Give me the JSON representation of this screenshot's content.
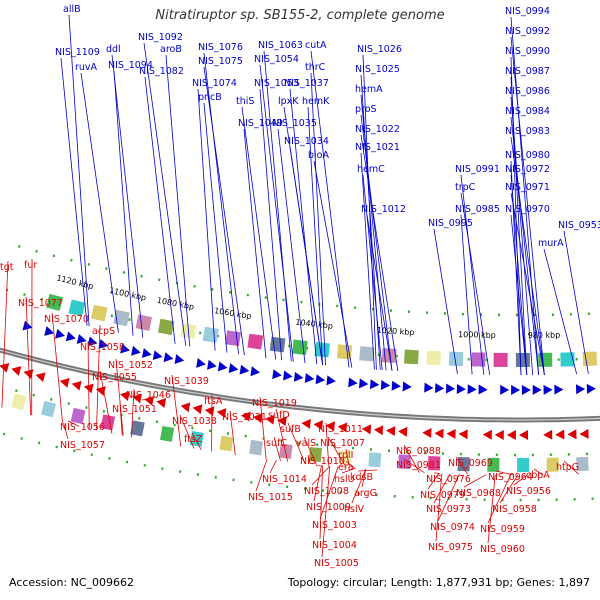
{
  "title": "Nitratiruptor sp. SB155-2, complete genome",
  "footer": {
    "accession": "Accession: NC_009662",
    "summary": "Topology: circular; Length: 1,877,931 bp; Genes: 1,897"
  },
  "colors": {
    "forward": "#0000cc",
    "reverse": "#dd0000",
    "backbone": "#777777",
    "tick": "#33aa33"
  },
  "ticks": [
    "1120 kbp",
    "1100 kbp",
    "1080 kbp",
    "1060 kbp",
    "1040 kbp",
    "1020 kbp",
    "1000 kbp",
    "980 kbp"
  ],
  "forward_labels": [
    "allB",
    "NIS_1109",
    "ddl",
    "ruvA",
    "NIS_1092",
    "NIS_1094",
    "aroB",
    "NIS_1082",
    "NIS_1076",
    "NIS_1075",
    "NIS_1074",
    "pncB",
    "NIS_1063",
    "NIS_1054",
    "cutA",
    "thrC",
    "NIS_1053",
    "NIS_1037",
    "thiS",
    "lpxK",
    "hemK",
    "NIS_1049",
    "NIS_1035",
    "NIS_1034",
    "bioA",
    "NIS_1026",
    "NIS_1025",
    "hemA",
    "proS",
    "NIS_1022",
    "NIS_1021",
    "hemC",
    "NIS_1012",
    "NIS_0994",
    "NIS_0992",
    "NIS_0990",
    "NIS_0987",
    "NIS_0986",
    "NIS_0984",
    "NIS_0983",
    "NIS_0980",
    "NIS_0972",
    "NIS_0991",
    "trpC",
    "NIS_0971",
    "NIS_0985",
    "NIS_0970",
    "NIS_0995",
    "NIS_0953",
    "murA"
  ],
  "reverse_labels": [
    "tgt",
    "fur",
    "NIS_1077",
    "NIS_1070",
    "acpS",
    "NIS_1058",
    "NIS_1052",
    "NIS_1055",
    "NIS_1046",
    "NIS_1051",
    "NIS_1039",
    "NIS_1038",
    "ftsA",
    "NIS_1031",
    "ftsZ",
    "NIS_1056",
    "NIS_1057",
    "NIS_1019",
    "sufD",
    "sufB",
    "NIS_1011",
    "sufC",
    "valS",
    "NIS_1007",
    "NIS_1010",
    "NIS_1014",
    "NIS_1015",
    "NIS_1008",
    "rplI",
    "era",
    "hslU",
    "kdsB",
    "argG",
    "NIS_1009",
    "hslV",
    "NIS_1003",
    "NIS_1004",
    "NIS_1005",
    "NIS_0988",
    "NIS_0981",
    "NIS_0976",
    "NIS_0979",
    "NIS_0973",
    "NIS_0974",
    "NIS_0975",
    "NIS_0969",
    "NIS_0964",
    "NIS_0968",
    "cbpA",
    "NIS_0956",
    "NIS_0958",
    "NIS_0959",
    "NIS_0960",
    "htpG"
  ]
}
